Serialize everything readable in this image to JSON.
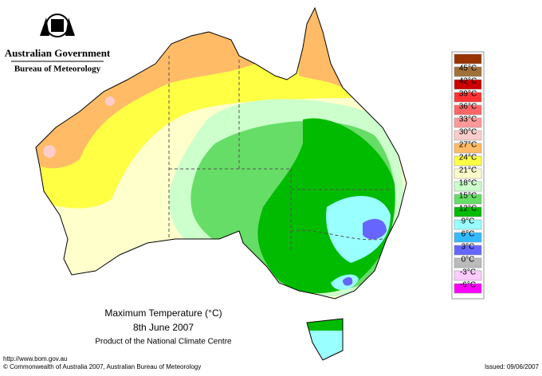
{
  "header": {
    "government": "Australian Government",
    "agency": "Bureau of Meteorology"
  },
  "title": {
    "line1": "Maximum Temperature (°C)",
    "line2": "8th June 2007",
    "line3": "Product of the National Climate Centre"
  },
  "legend": {
    "labels": [
      "45°C",
      "42°C",
      "39°C",
      "36°C",
      "33°C",
      "30°C",
      "27°C",
      "24°C",
      "21°C",
      "18°C",
      "15°C",
      "12°C",
      "9°C",
      "6°C",
      "3°C",
      "0°C",
      "-3°C",
      "-6°C"
    ],
    "colors": [
      "#993300",
      "#a0703a",
      "#cc0000",
      "#ff3333",
      "#ff6666",
      "#ff9999",
      "#ffcccc",
      "#ffbb66",
      "#ffff44",
      "#ffffcc",
      "#ccffcc",
      "#66dd66",
      "#00bb00",
      "#99ffff",
      "#33bbff",
      "#6666ff",
      "#bbbbbb",
      "#ffccff",
      "#ff00ff"
    ]
  },
  "footer": {
    "url": "http://www.bom.gov.au",
    "copyright": "© Commonwealth of Australia 2007, Australian Bureau of Meteorology",
    "issued": "Issued: 09/06/2007"
  }
}
